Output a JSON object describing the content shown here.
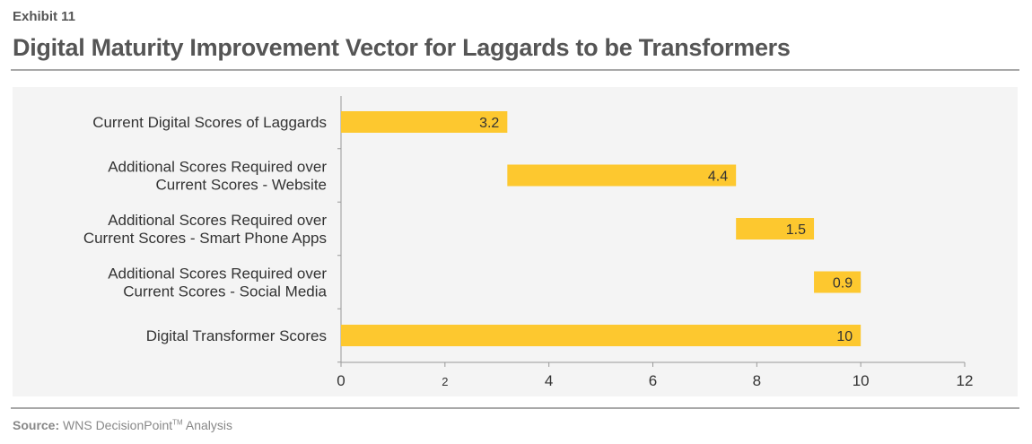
{
  "header": {
    "exhibit": "Exhibit 11",
    "title": "Digital Maturity Improvement Vector for Laggards to be Transformers"
  },
  "footer": {
    "source_label": "Source:",
    "source_text": " WNS DecisionPoint",
    "source_tm": "TM",
    "source_suffix": " Analysis"
  },
  "chart_data": {
    "type": "bar",
    "orientation": "horizontal",
    "subtype": "waterfall",
    "categories": [
      [
        "Current Digital Scores of Laggards"
      ],
      [
        "Additional Scores Required over",
        "Current Scores - Website"
      ],
      [
        "Additional Scores Required over",
        "Current Scores - Smart Phone Apps"
      ],
      [
        "Additional Scores Required over",
        "Current Scores - Social Media"
      ],
      [
        "Digital Transformer Scores"
      ]
    ],
    "values": [
      3.2,
      4.4,
      1.5,
      0.9,
      10
    ],
    "starts": [
      0,
      3.2,
      7.6,
      9.1,
      0
    ],
    "value_labels": [
      "3.2",
      "4.4",
      "1.5",
      "0.9",
      "10"
    ],
    "xlim": [
      0,
      12
    ],
    "xticks": [
      0,
      2,
      4,
      6,
      8,
      10,
      12
    ],
    "grid": false,
    "bar_color": "#fdc82f",
    "xlabel": "",
    "ylabel": ""
  }
}
